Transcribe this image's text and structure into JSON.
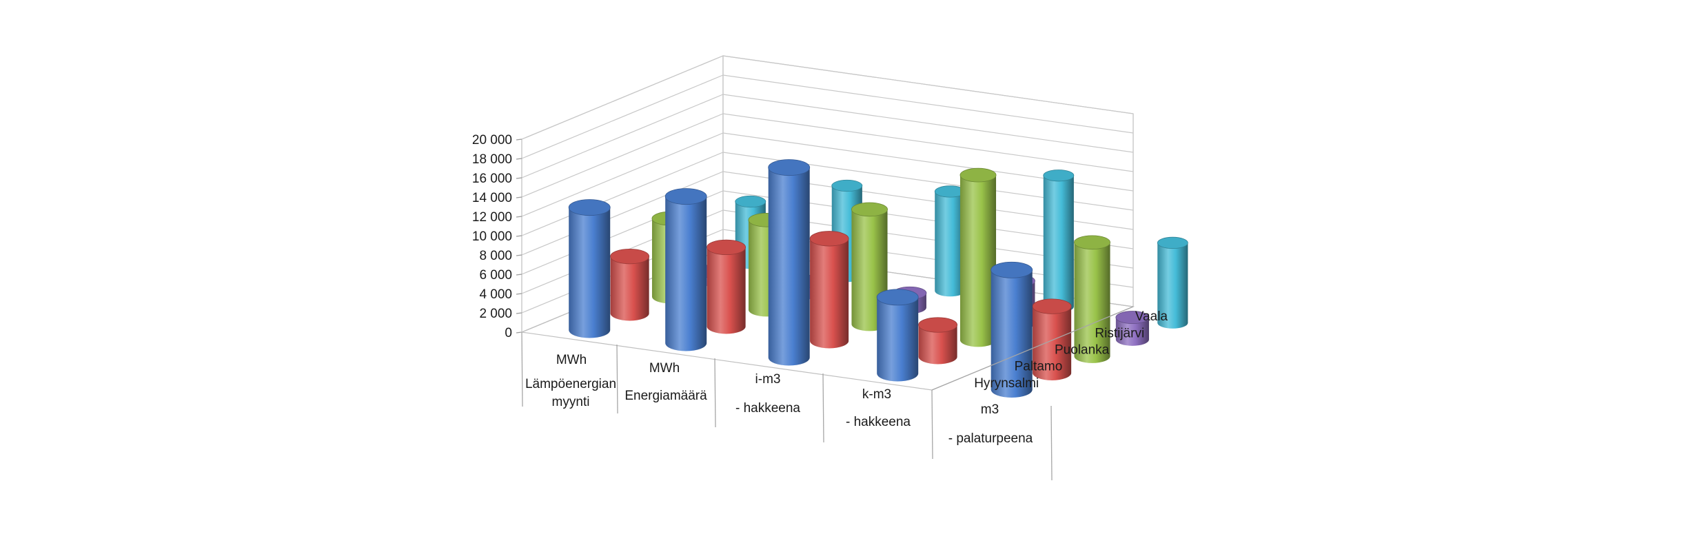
{
  "chart_data": {
    "type": "bar3d-cylinder",
    "title": "",
    "categories": [
      {
        "line1": "MWh",
        "line2": "Lämpöenergian myynti"
      },
      {
        "line1": "MWh",
        "line2": "Energiamäärä"
      },
      {
        "line1": "i-m3",
        "line2": "- hakkeena"
      },
      {
        "line1": "k-m3",
        "line2": "- hakkeena"
      },
      {
        "line1": "m3",
        "line2": "- palaturpeena"
      }
    ],
    "series": [
      {
        "name": "Hyrynsalmi",
        "color": "#4a7fd0",
        "values": [
          12700,
          15200,
          19700,
          7900,
          12400
        ]
      },
      {
        "name": "Paltamo",
        "color": "#d9514e",
        "values": [
          5900,
          8200,
          10600,
          3300,
          6900
        ]
      },
      {
        "name": "Puolanka",
        "color": "#9ac34a",
        "values": [
          8100,
          9300,
          11900,
          17100,
          11800
        ]
      },
      {
        "name": "Ristijärvi",
        "color": "#8e6fc1",
        "values": [
          900,
          1200,
          1500,
          4400,
          2300
        ]
      },
      {
        "name": "Vaala",
        "color": "#45bcd8",
        "values": [
          6400,
          9400,
          10300,
          13600,
          8300
        ]
      }
    ],
    "yticks": [
      "0",
      "2 000",
      "4 000",
      "6 000",
      "8 000",
      "10 000",
      "12 000",
      "14 000",
      "16 000",
      "18 000",
      "20 000"
    ],
    "ylim": [
      0,
      20000
    ],
    "grid": true,
    "legend": "depth-axis-right"
  }
}
